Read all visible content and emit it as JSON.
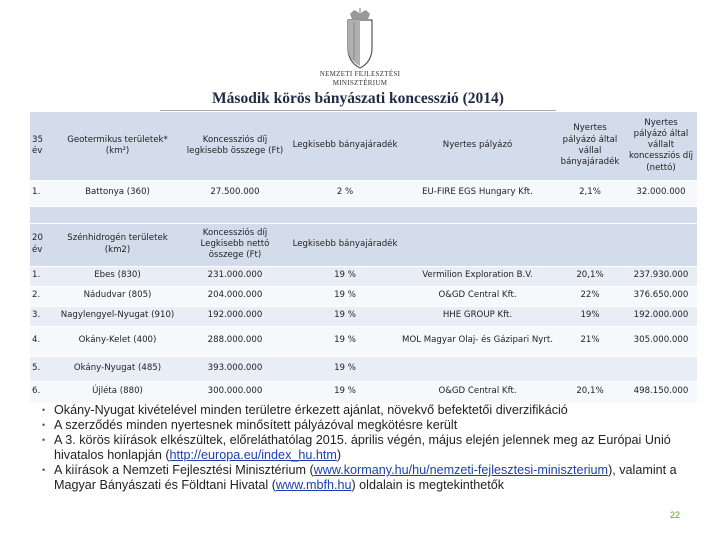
{
  "logo": {
    "lines": [
      "NEMZETI FEJLESZTÉSI",
      "MINISZTÉRIUM"
    ]
  },
  "title": "Második körös bányászati koncesszió (2014)",
  "table": {
    "header1": [
      "35 év",
      "Geotermikus területek* (km²)",
      "Koncessziós díj legkisebb összege (Ft)",
      "Legkisebb bányajáradék",
      "Nyertes pályázó",
      "Nyertes pályázó által vállal bányajáradék",
      "Nyertes pályázó által vállalt koncessziós díj (nettó)"
    ],
    "rows1": [
      [
        "1.",
        "Battonya (360)",
        "27.500.000",
        "2 %",
        "EU-FIRE EGS Hungary Kft.",
        "2,1%",
        "32.000.000"
      ]
    ],
    "header2": [
      "20 év",
      "Szénhidrogén területek (km2)",
      "Koncessziós díj Legkisebb nettó összege (Ft)",
      "Legkisebb bányajáradék"
    ],
    "rows2": [
      [
        "1.",
        "Ebes (830)",
        "231.000.000",
        "19 %",
        "Vermilion Exploration B.V.",
        "20,1%",
        "237.930.000"
      ],
      [
        "2.",
        "Nádudvar (805)",
        "204.000.000",
        "19 %",
        "O&GD Central Kft.",
        "22%",
        "376.650.000"
      ],
      [
        "3.",
        "Nagylengyel-Nyugat (910)",
        "192.000.000",
        "19 %",
        "HHE GROUP Kft.",
        "19%",
        "192.000.000"
      ],
      [
        "4.",
        "Okány-Kelet (400)",
        "288.000.000",
        "19 %",
        "MOL Magyar Olaj- és Gázipari Nyrt.",
        "21%",
        "305.000.000"
      ],
      [
        "5.",
        "Okány-Nyugat (485)",
        "393.000.000",
        "19 %"
      ],
      [
        "6.",
        "Újléta (880)",
        "300.000.000",
        "19 %",
        "O&GD Central Kft.",
        "20,1%",
        "498.150.000"
      ]
    ]
  },
  "bullets": [
    [
      "Okány-Nyugat kivételével minden területre érkezett ajánlat, növekvő befektetői diverzifikáció"
    ],
    [
      "A szerződés minden nyertesnek minősített pályázóval megkötésre került"
    ],
    [
      "A 3. körös kiírások elkészültek, előreláthatólag 2015. április végén, május elején jelennek meg az Európai Unió hivatalos honlapján (",
      {
        "link": "http://europa.eu/index_hu.htm"
      },
      ")"
    ],
    [
      "A kiírások a Nemzeti Fejlesztési Minisztérium (",
      {
        "link": "www.kormany.hu/hu/nemzeti-fejlesztesi-miniszterium"
      },
      "), valamint a Magyar Bányászati és Földtani Hivatal (",
      {
        "link": "www.mbfh.hu"
      },
      ") oldalain is megtekinthetők"
    ]
  ],
  "page_number": "22"
}
